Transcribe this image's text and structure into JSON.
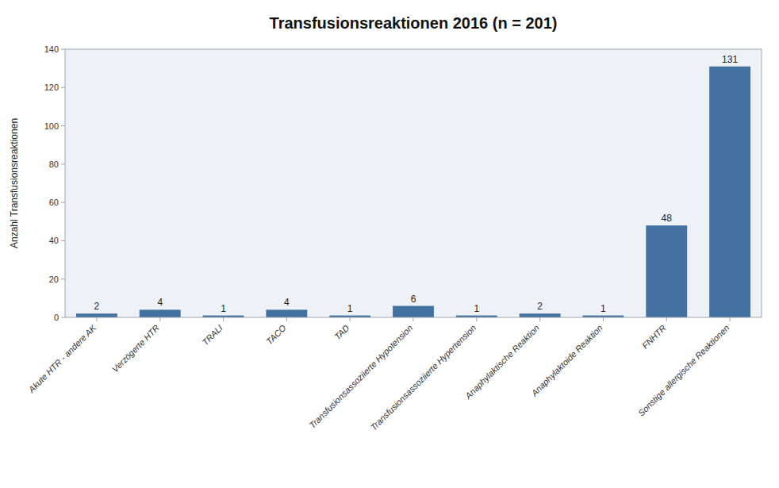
{
  "chart_data": {
    "type": "bar",
    "title": "Transfusionsreaktionen 2016 (n = 201)",
    "ylabel": "Anzahl Transfusionsreaktionen",
    "categories": [
      "Akute HTR - andere AK",
      "Verzögerte HTR",
      "TRALI",
      "TACO",
      "TAD",
      "Transfusionsassoziierte Hypotension",
      "Transfusionsassoziierte Hypertension",
      "Anaphylaktische Reaktion",
      "Anaphylaktoide Reaktion",
      "FNHTR",
      "Sonstige allergische Reaktionen"
    ],
    "values": [
      2,
      4,
      1,
      4,
      1,
      6,
      1,
      2,
      1,
      48,
      131
    ],
    "color": "#4472a0",
    "ylim": [
      0,
      140
    ],
    "yticks": [
      0,
      20,
      40,
      60,
      80,
      100,
      120,
      140
    ],
    "grid": false,
    "data_labels": true
  }
}
